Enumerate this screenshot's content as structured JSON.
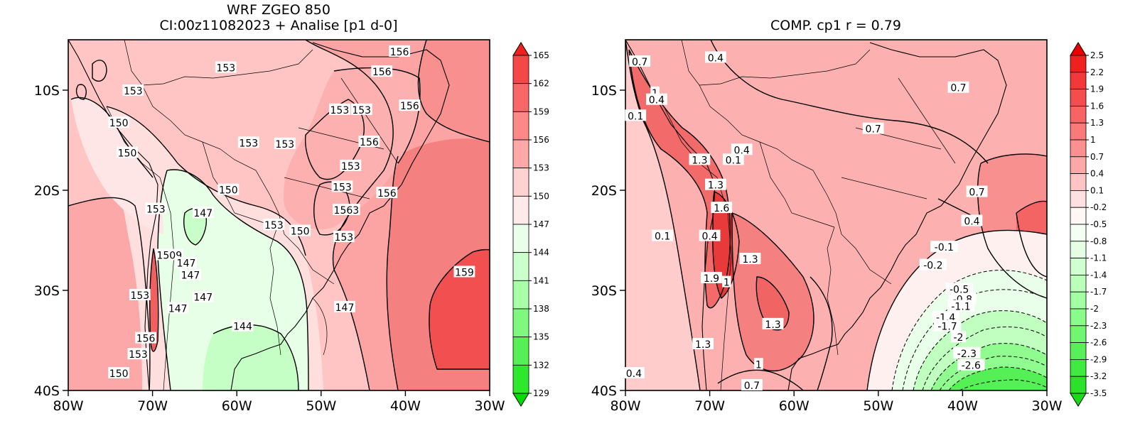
{
  "left": {
    "title_line1": "WRF ZGEO 850",
    "title_line2": "CI:00z11082023 + Analise  [p1 d-0]",
    "lat_labels": [
      "10S",
      "20S",
      "30S",
      "40S"
    ],
    "lon_labels": [
      "80W",
      "70W",
      "60W",
      "50W",
      "40W",
      "30W"
    ],
    "colorbar_labels": [
      "165",
      "162",
      "159",
      "156",
      "153",
      "150",
      "147",
      "144",
      "141",
      "138",
      "135",
      "132",
      "129"
    ],
    "colorbar_colors": [
      "#ee2020",
      "#f44848",
      "#f86868",
      "#fc8888",
      "#ffa8a8",
      "#ffd2d2",
      "#ffe9e9",
      "#eaffea",
      "#cbffcb",
      "#a8ffa8",
      "#80f880",
      "#55f055",
      "#2ee82e",
      "#00dc00"
    ],
    "contour_labels": [
      {
        "text": "153",
        "lat": -10.1,
        "lon": -72.3
      },
      {
        "text": "153",
        "lat": -7.8,
        "lon": -61.3
      },
      {
        "text": "156",
        "lat": -6.2,
        "lon": -40.7
      },
      {
        "text": "156",
        "lat": -8.2,
        "lon": -42.8
      },
      {
        "text": "156",
        "lat": -11.6,
        "lon": -39.5
      },
      {
        "text": "150",
        "lat": -13.3,
        "lon": -74.0
      },
      {
        "text": "153",
        "lat": -12.0,
        "lon": -45.2
      },
      {
        "text": "153",
        "lat": -12.0,
        "lon": -47.8
      },
      {
        "text": "153",
        "lat": -15.3,
        "lon": -58.6
      },
      {
        "text": "153",
        "lat": -15.4,
        "lon": -54.3
      },
      {
        "text": "156",
        "lat": -15.2,
        "lon": -44.3
      },
      {
        "text": "150",
        "lat": -16.3,
        "lon": -73.0
      },
      {
        "text": "153",
        "lat": -17.6,
        "lon": -46.5
      },
      {
        "text": "150",
        "lat": -20.0,
        "lon": -61.0
      },
      {
        "text": "153",
        "lat": -19.7,
        "lon": -47.5
      },
      {
        "text": "156",
        "lat": -20.3,
        "lon": -42.2
      },
      {
        "text": "153",
        "lat": -21.9,
        "lon": -69.6
      },
      {
        "text": "147",
        "lat": -22.3,
        "lon": -64.0
      },
      {
        "text": "1563",
        "lat": -22.0,
        "lon": -47.0
      },
      {
        "text": "153",
        "lat": -23.5,
        "lon": -55.6
      },
      {
        "text": "150",
        "lat": -24.1,
        "lon": -52.5
      },
      {
        "text": "153",
        "lat": -24.7,
        "lon": -47.3
      },
      {
        "text": "1509",
        "lat": -26.5,
        "lon": -68.0
      },
      {
        "text": "147",
        "lat": -27.3,
        "lon": -66.0
      },
      {
        "text": "147",
        "lat": -28.5,
        "lon": -65.5
      },
      {
        "text": "159",
        "lat": -28.2,
        "lon": -33.0
      },
      {
        "text": "153",
        "lat": -30.5,
        "lon": -71.5
      },
      {
        "text": "147",
        "lat": -30.7,
        "lon": -64.0
      },
      {
        "text": "147",
        "lat": -31.8,
        "lon": -67.0
      },
      {
        "text": "147",
        "lat": -31.7,
        "lon": -47.2
      },
      {
        "text": "144",
        "lat": -33.6,
        "lon": -59.3
      },
      {
        "text": "156",
        "lat": -34.8,
        "lon": -70.8
      },
      {
        "text": "153",
        "lat": -36.4,
        "lon": -71.7
      },
      {
        "text": "150",
        "lat": -38.3,
        "lon": -74.0
      }
    ]
  },
  "right": {
    "title": "COMP. cp1  r =  0.79",
    "lat_labels": [
      "10S",
      "20S",
      "30S",
      "40S"
    ],
    "lon_labels": [
      "80W",
      "70W",
      "60W",
      "50W",
      "40W",
      "30W"
    ],
    "colorbar_labels": [
      "2.5",
      "2.2",
      "1.9",
      "1.6",
      "1.3",
      "1",
      "0.7",
      "0.4",
      "0.1",
      "-0.2",
      "-0.5",
      "-0.8",
      "-1.1",
      "-1.4",
      "-1.7",
      "-2",
      "-2.3",
      "-2.6",
      "-2.9",
      "-3.2",
      "-3.5"
    ],
    "colorbar_colors": [
      "#e80000",
      "#ee2020",
      "#f23838",
      "#f54d4d",
      "#f86464",
      "#fa7a7a",
      "#fc9090",
      "#fda8a8",
      "#ffc4c4",
      "#ffe0e0",
      "#fff6f6",
      "#f4fff4",
      "#e4ffe4",
      "#d0ffd0",
      "#baffba",
      "#a2ffa2",
      "#8afc8a",
      "#70f670",
      "#58f058",
      "#40ea40",
      "#2ae22a",
      "#18dc18"
    ],
    "contour_labels": [
      {
        "text": "0.7",
        "lat": -7.2,
        "lon": -78.3
      },
      {
        "text": "0.4",
        "lat": -6.8,
        "lon": -69.3
      },
      {
        "text": "0.7",
        "lat": -9.8,
        "lon": -40.5
      },
      {
        "text": "1",
        "lat": -10.3,
        "lon": -76.5
      },
      {
        "text": "0.4",
        "lat": -11.0,
        "lon": -76.3
      },
      {
        "text": "0.1",
        "lat": -12.6,
        "lon": -78.8
      },
      {
        "text": "0.7",
        "lat": -13.9,
        "lon": -50.6
      },
      {
        "text": "0.4",
        "lat": -16.0,
        "lon": -66.2
      },
      {
        "text": "1.3",
        "lat": -17.0,
        "lon": -71.2
      },
      {
        "text": "0.1",
        "lat": -17.0,
        "lon": -67.2
      },
      {
        "text": "1.3",
        "lat": -19.5,
        "lon": -69.3
      },
      {
        "text": "0.7",
        "lat": -20.2,
        "lon": -38.3
      },
      {
        "text": "1.6",
        "lat": -21.8,
        "lon": -68.6
      },
      {
        "text": "0.4",
        "lat": -23.1,
        "lon": -38.9
      },
      {
        "text": "0.1",
        "lat": -24.6,
        "lon": -75.6
      },
      {
        "text": "0.4",
        "lat": -24.6,
        "lon": -70.0
      },
      {
        "text": "-0.1",
        "lat": -25.7,
        "lon": -42.2
      },
      {
        "text": "1.3",
        "lat": -26.9,
        "lon": -65.2
      },
      {
        "text": "-0.2",
        "lat": -27.5,
        "lon": -43.5
      },
      {
        "text": "1.9",
        "lat": -28.8,
        "lon": -69.8
      },
      {
        "text": "1",
        "lat": -29.2,
        "lon": -68.0
      },
      {
        "text": "-0.5",
        "lat": -29.9,
        "lon": -40.4
      },
      {
        "text": "-0.8",
        "lat": -30.9,
        "lon": -40.0
      },
      {
        "text": "-1.1",
        "lat": -31.6,
        "lon": -40.2
      },
      {
        "text": "-1.4",
        "lat": -32.7,
        "lon": -42.0
      },
      {
        "text": "-1.7",
        "lat": -33.6,
        "lon": -41.8
      },
      {
        "text": "1.3",
        "lat": -33.4,
        "lon": -62.5
      },
      {
        "text": "1.3",
        "lat": -35.4,
        "lon": -70.8
      },
      {
        "text": "-2",
        "lat": -34.7,
        "lon": -40.5
      },
      {
        "text": "-2.3",
        "lat": -36.3,
        "lon": -39.5
      },
      {
        "text": "-2.6",
        "lat": -37.5,
        "lon": -39.0
      },
      {
        "text": "1",
        "lat": -37.4,
        "lon": -64.2
      },
      {
        "text": "0.4",
        "lat": -38.3,
        "lon": -79.0
      },
      {
        "text": "0.7",
        "lat": -39.5,
        "lon": -65.0
      }
    ]
  }
}
